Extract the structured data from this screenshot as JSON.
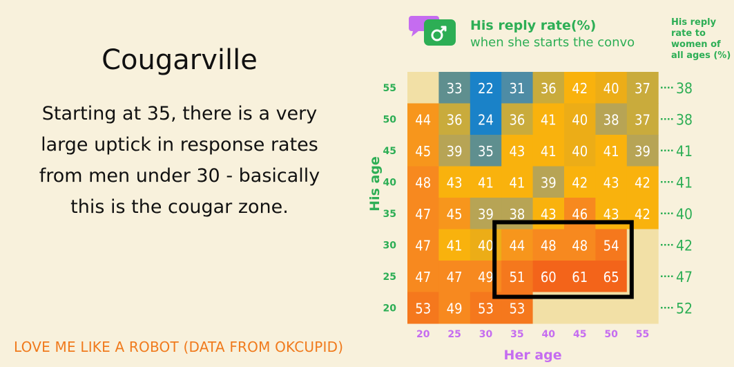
{
  "left_panel": {
    "title": "Cougarville",
    "description": "Starting at 35, there is a very large uptick in response rates from men under 30 - basically this is the cougar zone.",
    "footer": "LOVE ME LIKE A ROBOT (DATA FROM OKCUPID)"
  },
  "legend": {
    "title": "His reply rate(%)",
    "subtitle": "when she starts the convo",
    "icon": "male-symbol-chat-bubble-icon",
    "colors": {
      "green": "#2dae55",
      "pink": "#c56cf0"
    }
  },
  "side_header": "His reply rate to women of all ages (%)",
  "chart_data": {
    "type": "heatmap",
    "xlabel": "Her age",
    "ylabel": "His age",
    "x_categories": [
      "20",
      "25",
      "30",
      "35",
      "40",
      "45",
      "50",
      "55"
    ],
    "y_categories": [
      "55",
      "50",
      "45",
      "40",
      "35",
      "30",
      "25",
      "20"
    ],
    "values": [
      [
        null,
        33,
        22,
        31,
        36,
        42,
        40,
        37
      ],
      [
        44,
        36,
        24,
        36,
        41,
        40,
        38,
        37
      ],
      [
        45,
        39,
        35,
        43,
        41,
        40,
        41,
        39
      ],
      [
        48,
        43,
        41,
        41,
        39,
        42,
        43,
        42
      ],
      [
        47,
        45,
        39,
        38,
        43,
        46,
        43,
        42
      ],
      [
        47,
        41,
        40,
        44,
        48,
        48,
        54,
        null
      ],
      [
        47,
        47,
        49,
        51,
        60,
        61,
        65,
        null
      ],
      [
        53,
        49,
        53,
        53,
        null,
        null,
        null,
        null
      ]
    ],
    "row_totals": [
      "38",
      "38",
      "41",
      "41",
      "40",
      "42",
      "47",
      "52"
    ],
    "highlight": {
      "label": "cougar zone",
      "her_age_from": "35",
      "her_age_to": "50",
      "his_age_from": "25",
      "his_age_to": "30"
    },
    "colors": {
      "empty": "#f2e0a6",
      "ticks_x": "#c56cf0",
      "ticks_y": "#2dae55",
      "totals": "#2dae55",
      "highlight_border": "#000000"
    }
  }
}
